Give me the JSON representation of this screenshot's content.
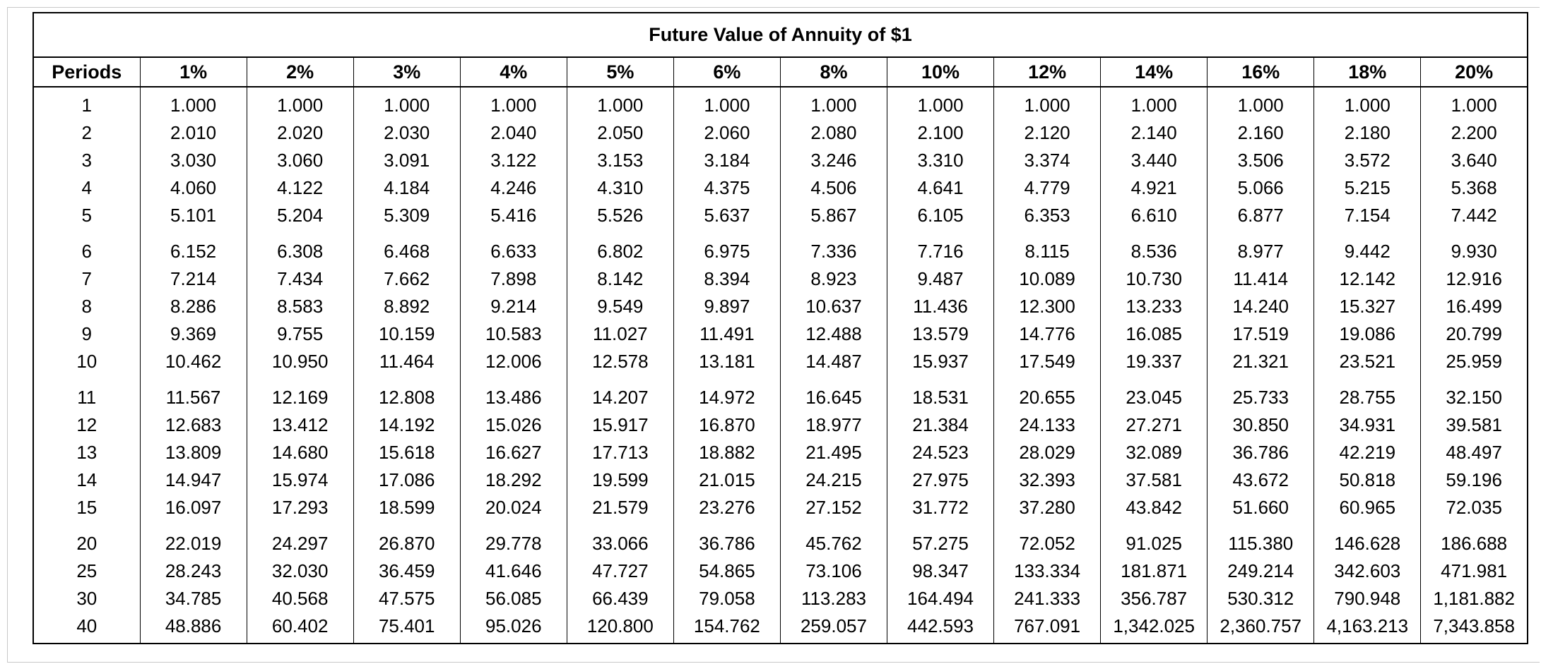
{
  "table": {
    "title": "Future Value of Annuity of $1",
    "headers": [
      "Periods",
      "1%",
      "2%",
      "3%",
      "4%",
      "5%",
      "6%",
      "8%",
      "10%",
      "12%",
      "14%",
      "16%",
      "18%",
      "20%"
    ],
    "groups": [
      [
        [
          "1",
          "1.000",
          "1.000",
          "1.000",
          "1.000",
          "1.000",
          "1.000",
          "1.000",
          "1.000",
          "1.000",
          "1.000",
          "1.000",
          "1.000",
          "1.000"
        ],
        [
          "2",
          "2.010",
          "2.020",
          "2.030",
          "2.040",
          "2.050",
          "2.060",
          "2.080",
          "2.100",
          "2.120",
          "2.140",
          "2.160",
          "2.180",
          "2.200"
        ],
        [
          "3",
          "3.030",
          "3.060",
          "3.091",
          "3.122",
          "3.153",
          "3.184",
          "3.246",
          "3.310",
          "3.374",
          "3.440",
          "3.506",
          "3.572",
          "3.640"
        ],
        [
          "4",
          "4.060",
          "4.122",
          "4.184",
          "4.246",
          "4.310",
          "4.375",
          "4.506",
          "4.641",
          "4.779",
          "4.921",
          "5.066",
          "5.215",
          "5.368"
        ],
        [
          "5",
          "5.101",
          "5.204",
          "5.309",
          "5.416",
          "5.526",
          "5.637",
          "5.867",
          "6.105",
          "6.353",
          "6.610",
          "6.877",
          "7.154",
          "7.442"
        ]
      ],
      [
        [
          "6",
          "6.152",
          "6.308",
          "6.468",
          "6.633",
          "6.802",
          "6.975",
          "7.336",
          "7.716",
          "8.115",
          "8.536",
          "8.977",
          "9.442",
          "9.930"
        ],
        [
          "7",
          "7.214",
          "7.434",
          "7.662",
          "7.898",
          "8.142",
          "8.394",
          "8.923",
          "9.487",
          "10.089",
          "10.730",
          "11.414",
          "12.142",
          "12.916"
        ],
        [
          "8",
          "8.286",
          "8.583",
          "8.892",
          "9.214",
          "9.549",
          "9.897",
          "10.637",
          "11.436",
          "12.300",
          "13.233",
          "14.240",
          "15.327",
          "16.499"
        ],
        [
          "9",
          "9.369",
          "9.755",
          "10.159",
          "10.583",
          "11.027",
          "11.491",
          "12.488",
          "13.579",
          "14.776",
          "16.085",
          "17.519",
          "19.086",
          "20.799"
        ],
        [
          "10",
          "10.462",
          "10.950",
          "11.464",
          "12.006",
          "12.578",
          "13.181",
          "14.487",
          "15.937",
          "17.549",
          "19.337",
          "21.321",
          "23.521",
          "25.959"
        ]
      ],
      [
        [
          "11",
          "11.567",
          "12.169",
          "12.808",
          "13.486",
          "14.207",
          "14.972",
          "16.645",
          "18.531",
          "20.655",
          "23.045",
          "25.733",
          "28.755",
          "32.150"
        ],
        [
          "12",
          "12.683",
          "13.412",
          "14.192",
          "15.026",
          "15.917",
          "16.870",
          "18.977",
          "21.384",
          "24.133",
          "27.271",
          "30.850",
          "34.931",
          "39.581"
        ],
        [
          "13",
          "13.809",
          "14.680",
          "15.618",
          "16.627",
          "17.713",
          "18.882",
          "21.495",
          "24.523",
          "28.029",
          "32.089",
          "36.786",
          "42.219",
          "48.497"
        ],
        [
          "14",
          "14.947",
          "15.974",
          "17.086",
          "18.292",
          "19.599",
          "21.015",
          "24.215",
          "27.975",
          "32.393",
          "37.581",
          "43.672",
          "50.818",
          "59.196"
        ],
        [
          "15",
          "16.097",
          "17.293",
          "18.599",
          "20.024",
          "21.579",
          "23.276",
          "27.152",
          "31.772",
          "37.280",
          "43.842",
          "51.660",
          "60.965",
          "72.035"
        ]
      ],
      [
        [
          "20",
          "22.019",
          "24.297",
          "26.870",
          "29.778",
          "33.066",
          "36.786",
          "45.762",
          "57.275",
          "72.052",
          "91.025",
          "115.380",
          "146.628",
          "186.688"
        ],
        [
          "25",
          "28.243",
          "32.030",
          "36.459",
          "41.646",
          "47.727",
          "54.865",
          "73.106",
          "98.347",
          "133.334",
          "181.871",
          "249.214",
          "342.603",
          "471.981"
        ],
        [
          "30",
          "34.785",
          "40.568",
          "47.575",
          "56.085",
          "66.439",
          "79.058",
          "113.283",
          "164.494",
          "241.333",
          "356.787",
          "530.312",
          "790.948",
          "1,181.882"
        ],
        [
          "40",
          "48.886",
          "60.402",
          "75.401",
          "95.026",
          "120.800",
          "154.762",
          "259.057",
          "442.593",
          "767.091",
          "1,342.025",
          "2,360.757",
          "4,163.213",
          "7,343.858"
        ]
      ]
    ]
  }
}
